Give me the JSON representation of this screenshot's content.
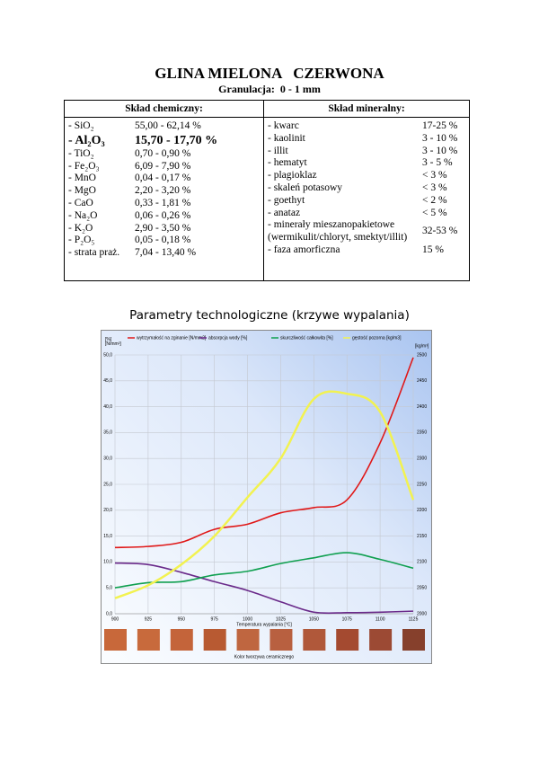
{
  "header": {
    "title": "GLINA MIELONA   CZERWONA",
    "subtitle": "Granulacja:  0 - 1 mm"
  },
  "chemical": {
    "heading": "Skład chemiczny:",
    "rows": [
      [
        "- SiO₂",
        "55,00 - 62,14 %"
      ],
      [
        "- Al₂O₃",
        "15,70 - 17,70 %"
      ],
      [
        "- TiO₂",
        "0,70 - 0,90 %"
      ],
      [
        "- Fe₂O₃",
        "6,09 - 7,90 %"
      ],
      [
        "- MnO",
        "0,04 - 0,17 %"
      ],
      [
        "- MgO",
        "2,20 - 3,20 %"
      ],
      [
        "- CaO",
        "0,33 - 1,81 %"
      ],
      [
        "- Na₂O",
        "0,06 - 0,26 %"
      ],
      [
        "- K₂O",
        "2,90 - 3,50 %"
      ],
      [
        "- P₂O₅",
        "0,05 - 0,18 %"
      ],
      [
        "- strata praż.",
        "7,04 - 13,40 %"
      ]
    ]
  },
  "mineral": {
    "heading": "Skład mineralny:",
    "rows": [
      [
        "- kwarc",
        "17-25 %"
      ],
      [
        "- kaolinit",
        "3 - 10 %"
      ],
      [
        "- illit",
        "3 - 10 %"
      ],
      [
        "- hematyt",
        "3 - 5 %"
      ],
      [
        "- plagioklaz",
        "< 3 %"
      ],
      [
        "- skaleń potasowy",
        "< 3 %"
      ],
      [
        "- goethyt",
        "< 2 %"
      ],
      [
        "- anataz",
        "< 5 %"
      ],
      [
        "- minerały mieszanopakietowe\n(wermikulit/chloryt, smektyt/illit)",
        "32-53 %"
      ],
      [
        "- faza amorficzna",
        "15 %"
      ]
    ]
  },
  "chart_data": {
    "type": "line",
    "title": "Parametry technologiczne (krzywe wypalania)",
    "y_label": "[%]\n[N/mm²]",
    "y2_label": "[kg/m³]",
    "x_label": "Temperatura wypalania [°C]",
    "color_label": "Kolor tworzywa ceramicznego",
    "x": [
      900,
      925,
      950,
      975,
      1000,
      1025,
      1050,
      1075,
      1100,
      1125
    ],
    "xlim": [
      900,
      1125
    ],
    "xticks": [
      900,
      925,
      950,
      975,
      1000,
      1025,
      1050,
      1075,
      1100,
      1125
    ],
    "ylim": [
      0,
      50
    ],
    "yticks": [
      {
        "value": 0,
        "label": "0,0"
      },
      {
        "value": 5,
        "label": "5,0"
      },
      {
        "value": 10,
        "label": "10,0"
      },
      {
        "value": 15,
        "label": "15,0"
      },
      {
        "value": 20,
        "label": "20,0"
      },
      {
        "value": 25,
        "label": "25,0"
      },
      {
        "value": 30,
        "label": "30,0"
      },
      {
        "value": 35,
        "label": "35,0"
      },
      {
        "value": 40,
        "label": "40,0"
      },
      {
        "value": 45,
        "label": "45,0"
      },
      {
        "value": 50,
        "label": "50,0"
      }
    ],
    "y2lim": [
      2000,
      2500
    ],
    "y2ticks": [
      2000,
      2050,
      2100,
      2150,
      2200,
      2250,
      2300,
      2350,
      2400,
      2450,
      2500
    ],
    "grid": true,
    "series": [
      {
        "name": "wytrzymałość na zginanie [N/mm2]",
        "color": "#e01818",
        "values": [
          12.8,
          13.0,
          13.8,
          16.3,
          17.3,
          19.5,
          20.5,
          22.0,
          33.0,
          49.5
        ]
      },
      {
        "name": "absorpcja wody [%]",
        "color": "#6a2a8a",
        "values": [
          9.8,
          9.5,
          8.0,
          6.2,
          4.5,
          2.3,
          0.3,
          0.2,
          0.3,
          0.5
        ]
      },
      {
        "name": "skurczliwość całkowita [%]",
        "color": "#10a050",
        "values": [
          5.0,
          6.0,
          6.2,
          7.5,
          8.2,
          9.7,
          10.8,
          11.8,
          10.5,
          8.8
        ]
      },
      {
        "name": "gęstość pozorna [kg/m3]",
        "color": "#f2f250",
        "axis": "y2",
        "values": [
          2030,
          2055,
          2095,
          2150,
          2225,
          2300,
          2415,
          2425,
          2390,
          2220
        ]
      }
    ],
    "swatch_colors": [
      "#c8683a",
      "#c86a3c",
      "#c4643a",
      "#b85a32",
      "#bf6640",
      "#b86040",
      "#b0583a",
      "#a44a30",
      "#9c4a34",
      "#86402c"
    ]
  }
}
